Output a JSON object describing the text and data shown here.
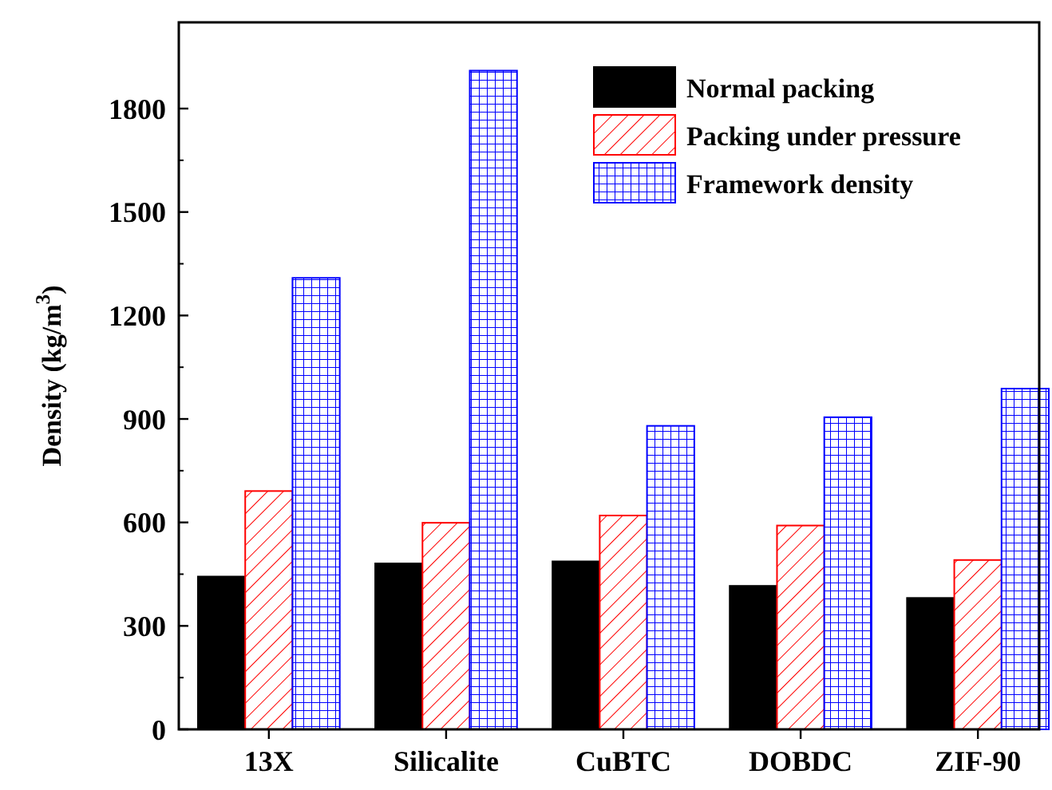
{
  "chart_data": {
    "type": "bar",
    "ylabel": "Density (kg/m$^{3}$)",
    "categories": [
      "13X",
      "Silicalite",
      "CuBTC",
      "DOBDC",
      "ZIF-90"
    ],
    "series": [
      {
        "name": "Normal packing",
        "color": "#000000",
        "values": [
          443,
          481,
          487,
          416,
          381
        ]
      },
      {
        "name": "Packing under pressure",
        "color": "#ff0000",
        "values": [
          691,
          599,
          620,
          591,
          491
        ]
      },
      {
        "name": "Framework density",
        "color": "#0000ff",
        "values": [
          1309,
          1910,
          880,
          905,
          988
        ]
      }
    ],
    "ylim": [
      0,
      2050
    ],
    "yticks": [
      0,
      300,
      600,
      900,
      1200,
      1500,
      1800
    ],
    "grid": false,
    "legend": "top right"
  }
}
